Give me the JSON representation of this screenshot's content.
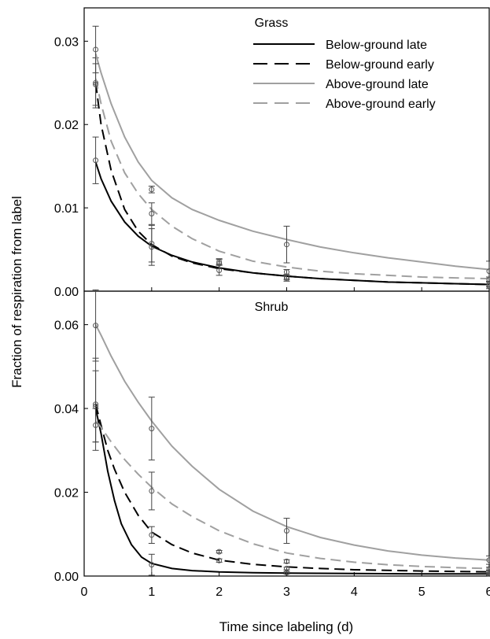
{
  "chart_data": {
    "type": "line",
    "xlabel": "Time since labeling (d)",
    "ylabel": "Fraction of respiration from label",
    "xlim": [
      0,
      6
    ],
    "xticks": [
      "0",
      "1",
      "2",
      "3",
      "4",
      "5",
      "6"
    ],
    "grid": false,
    "legend": {
      "placement": "top-right of upper panel",
      "entries": [
        {
          "label": "Below-ground late",
          "color": "#000000",
          "style": "solid"
        },
        {
          "label": "Below-ground early",
          "color": "#000000",
          "style": "dashed"
        },
        {
          "label": "Above-ground late",
          "color": "#a0a0a0",
          "style": "solid"
        },
        {
          "label": "Above-ground early",
          "color": "#a0a0a0",
          "style": "dashed"
        }
      ]
    },
    "panels": [
      {
        "title": "Grass",
        "ylim": [
          0,
          0.034
        ],
        "yticks": [
          "0.00",
          "0.01",
          "0.02",
          "0.03"
        ],
        "series": [
          {
            "name": "Below-ground late",
            "color": "#000000",
            "style": "solid",
            "x": [
              0.17,
              0.25,
              0.4,
              0.6,
              0.8,
              1.0,
              1.3,
              1.6,
              2.0,
              2.5,
              3.0,
              3.5,
              4.0,
              4.5,
              5.0,
              5.5,
              6.0
            ],
            "y": [
              0.0155,
              0.0135,
              0.0108,
              0.0083,
              0.0066,
              0.0054,
              0.0043,
              0.0035,
              0.0028,
              0.0022,
              0.0018,
              0.0015,
              0.0013,
              0.0011,
              0.001,
              0.0009,
              0.0008
            ],
            "points": [
              {
                "x": 0.17,
                "y": 0.0157,
                "err": 0.0028
              },
              {
                "x": 1.0,
                "y": 0.0053,
                "err": 0.0022
              },
              {
                "x": 2.0,
                "y": 0.0025,
                "err": 0.0006
              },
              {
                "x": 3.0,
                "y": 0.0015,
                "err": 0.0003
              },
              {
                "x": 6.0,
                "y": 0.0006,
                "err": 0.0003
              }
            ]
          },
          {
            "name": "Below-ground early",
            "color": "#000000",
            "style": "dashed",
            "x": [
              0.17,
              0.25,
              0.4,
              0.6,
              0.8,
              1.0,
              1.3,
              1.6,
              2.0,
              2.5,
              3.0,
              3.5,
              4.0,
              4.5,
              5.0,
              5.5,
              6.0
            ],
            "y": [
              0.025,
              0.02,
              0.0145,
              0.0098,
              0.0072,
              0.0056,
              0.0042,
              0.0034,
              0.0027,
              0.0022,
              0.0018,
              0.0015,
              0.0013,
              0.0011,
              0.001,
              0.0009,
              0.0008
            ],
            "points": [
              {
                "x": 0.17,
                "y": 0.025,
                "err": 0.003
              },
              {
                "x": 1.0,
                "y": 0.0057,
                "err": 0.0022
              },
              {
                "x": 2.0,
                "y": 0.0033,
                "err": 0.0006
              },
              {
                "x": 3.0,
                "y": 0.0017,
                "err": 0.0003
              },
              {
                "x": 6.0,
                "y": 0.0008,
                "err": 0.0003
              }
            ]
          },
          {
            "name": "Above-ground late",
            "color": "#a0a0a0",
            "style": "solid",
            "x": [
              0.17,
              0.25,
              0.4,
              0.6,
              0.8,
              1.0,
              1.3,
              1.6,
              2.0,
              2.5,
              3.0,
              3.5,
              4.0,
              4.5,
              5.0,
              5.5,
              6.0
            ],
            "y": [
              0.0285,
              0.0262,
              0.0225,
              0.0185,
              0.0155,
              0.0133,
              0.0112,
              0.0098,
              0.0085,
              0.0072,
              0.0062,
              0.0053,
              0.0046,
              0.004,
              0.0035,
              0.003,
              0.0026
            ],
            "points": [
              {
                "x": 0.17,
                "y": 0.029,
                "err": 0.0028
              },
              {
                "x": 1.0,
                "y": 0.0122,
                "err": 0.0004
              },
              {
                "x": 3.0,
                "y": 0.0056,
                "err": 0.0022
              },
              {
                "x": 6.0,
                "y": 0.0024,
                "err": 0.0012
              }
            ]
          },
          {
            "name": "Above-ground early",
            "color": "#a0a0a0",
            "style": "dashed",
            "x": [
              0.17,
              0.25,
              0.4,
              0.6,
              0.8,
              1.0,
              1.3,
              1.6,
              2.0,
              2.5,
              3.0,
              3.5,
              4.0,
              4.5,
              5.0,
              5.5,
              6.0
            ],
            "y": [
              0.0255,
              0.0225,
              0.018,
              0.0142,
              0.0117,
              0.0098,
              0.0078,
              0.0063,
              0.0048,
              0.0036,
              0.0029,
              0.0024,
              0.0021,
              0.0019,
              0.0017,
              0.0016,
              0.0015
            ],
            "points": [
              {
                "x": 0.17,
                "y": 0.0248,
                "err": 0.0025
              },
              {
                "x": 1.0,
                "y": 0.0093,
                "err": 0.0013
              },
              {
                "x": 2.0,
                "y": 0.0035,
                "err": 0.0003
              },
              {
                "x": 3.0,
                "y": 0.0023,
                "err": 0.0003
              },
              {
                "x": 6.0,
                "y": 0.0014,
                "err": 0.0003
              }
            ]
          }
        ]
      },
      {
        "title": "Shrub",
        "ylim": [
          0,
          0.068
        ],
        "yticks": [
          "0.00",
          "0.02",
          "0.04",
          "0.06"
        ],
        "series": [
          {
            "name": "Below-ground late",
            "color": "#000000",
            "style": "solid",
            "x": [
              0.17,
              0.25,
              0.35,
              0.45,
              0.55,
              0.7,
              0.85,
              1.0,
              1.3,
              1.6,
              2.0,
              2.5,
              3.0,
              4.0,
              5.0,
              6.0
            ],
            "y": [
              0.04,
              0.034,
              0.025,
              0.018,
              0.0125,
              0.0075,
              0.0045,
              0.003,
              0.0018,
              0.0013,
              0.001,
              0.0008,
              0.0007,
              0.0006,
              0.0005,
              0.0005
            ],
            "points": [
              {
                "x": 0.17,
                "y": 0.0405,
                "err": 0.0085
              },
              {
                "x": 1.0,
                "y": 0.0027,
                "err": 0.0025
              },
              {
                "x": 3.0,
                "y": 0.0008,
                "err": 0.0003
              },
              {
                "x": 6.0,
                "y": 0.0005,
                "err": 0.0003
              }
            ]
          },
          {
            "name": "Below-ground early",
            "color": "#000000",
            "style": "dashed",
            "x": [
              0.17,
              0.25,
              0.35,
              0.45,
              0.6,
              0.8,
              1.0,
              1.3,
              1.6,
              2.0,
              2.5,
              3.0,
              3.5,
              4.0,
              5.0,
              6.0
            ],
            "y": [
              0.041,
              0.036,
              0.03,
              0.0255,
              0.02,
              0.0145,
              0.0105,
              0.0075,
              0.0055,
              0.0038,
              0.0028,
              0.0022,
              0.0018,
              0.0015,
              0.0012,
              0.001
            ],
            "points": [
              {
                "x": 0.17,
                "y": 0.041,
                "err": 0.011
              },
              {
                "x": 1.0,
                "y": 0.0098,
                "err": 0.002
              },
              {
                "x": 2.0,
                "y": 0.0037,
                "err": 0.0004
              },
              {
                "x": 3.0,
                "y": 0.0018,
                "err": 0.0003
              },
              {
                "x": 6.0,
                "y": 0.001,
                "err": 0.0004
              }
            ]
          },
          {
            "name": "Above-ground late",
            "color": "#a0a0a0",
            "style": "solid",
            "x": [
              0.17,
              0.25,
              0.4,
              0.6,
              0.8,
              1.0,
              1.3,
              1.6,
              2.0,
              2.5,
              3.0,
              3.5,
              4.0,
              4.5,
              5.0,
              5.5,
              6.0
            ],
            "y": [
              0.06,
              0.0575,
              0.0525,
              0.0465,
              0.0415,
              0.037,
              0.031,
              0.0262,
              0.0207,
              0.0155,
              0.0118,
              0.0092,
              0.0074,
              0.006,
              0.005,
              0.0043,
              0.0038
            ],
            "points": [
              {
                "x": 0.17,
                "y": 0.0598,
                "err": 0.0085
              },
              {
                "x": 1.0,
                "y": 0.0352,
                "err": 0.0075
              },
              {
                "x": 3.0,
                "y": 0.0108,
                "err": 0.003
              },
              {
                "x": 6.0,
                "y": 0.0038,
                "err": 0.001
              }
            ]
          },
          {
            "name": "Above-ground early",
            "color": "#a0a0a0",
            "style": "dashed",
            "x": [
              0.17,
              0.25,
              0.4,
              0.6,
              0.8,
              1.0,
              1.3,
              1.6,
              2.0,
              2.5,
              3.0,
              3.5,
              4.0,
              4.5,
              5.0,
              5.5,
              6.0
            ],
            "y": [
              0.037,
              0.0355,
              0.032,
              0.0278,
              0.0243,
              0.0212,
              0.0172,
              0.0142,
              0.0108,
              0.0077,
              0.0055,
              0.0042,
              0.0033,
              0.0027,
              0.0023,
              0.002,
              0.0018
            ],
            "points": [
              {
                "x": 0.17,
                "y": 0.036,
                "err": 0.004
              },
              {
                "x": 1.0,
                "y": 0.0203,
                "err": 0.0045
              },
              {
                "x": 2.0,
                "y": 0.0058,
                "err": 0.0003
              },
              {
                "x": 3.0,
                "y": 0.0035,
                "err": 0.0004
              },
              {
                "x": 6.0,
                "y": 0.0017,
                "err": 0.0004
              }
            ]
          }
        ]
      }
    ]
  }
}
